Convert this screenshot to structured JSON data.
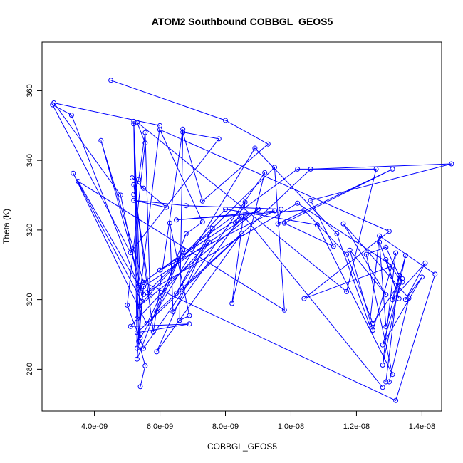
{
  "chart_data": {
    "type": "line",
    "title": "ATOM2 Southbound COBBGL_GEOS5",
    "xlabel": "COBBGL_GEOS5",
    "ylabel": "Theta (K)",
    "xlim": [
      2.4e-09,
      1.46e-08
    ],
    "ylim": [
      268,
      374
    ],
    "x_ticks": [
      4e-09,
      6e-09,
      8e-09,
      1e-08,
      1.2e-08,
      1.4e-08
    ],
    "x_tick_labels": [
      "4.0e-09",
      "6.0e-09",
      "8.0e-09",
      "1.0e-08",
      "1.2e-08",
      "1.4e-08"
    ],
    "y_ticks": [
      280,
      300,
      320,
      340,
      360
    ],
    "y_tick_labels": [
      "280",
      "300",
      "320",
      "340",
      "360"
    ],
    "grid": false,
    "legend": "none",
    "series": [
      {
        "color": "#0000ff",
        "style": "line+points",
        "points": [
          [
            4.5e-09,
            363.0
          ],
          [
            8e-09,
            351.5
          ],
          [
            9.3e-09,
            344.7
          ],
          [
            7.3e-09,
            328.3
          ],
          [
            6.7e-09,
            348.1
          ],
          [
            7.8e-09,
            346.2
          ],
          [
            5.1e-09,
            313.5
          ],
          [
            2.72e-09,
            356.0
          ],
          [
            3.3e-09,
            353.0
          ],
          [
            5.4e-09,
            302.5
          ],
          [
            5.2e-09,
            351.2
          ],
          [
            5.4e-09,
            289.0
          ],
          [
            8.9e-09,
            343.5
          ],
          [
            1.14e-08,
            318.9
          ],
          [
            1.24e-08,
            292.7
          ],
          [
            1.27e-08,
            318.3
          ],
          [
            1.44e-08,
            307.3
          ],
          [
            1.32e-08,
            271.0
          ],
          [
            5.5e-09,
            305.0
          ],
          [
            4.2e-09,
            345.7
          ],
          [
            5.5e-09,
            301.5
          ],
          [
            3.5e-09,
            334.0
          ],
          [
            9.8e-09,
            297.0
          ],
          [
            9.5e-09,
            338.0
          ],
          [
            5.6e-09,
            302.0
          ],
          [
            1.02e-08,
            327.7
          ],
          [
            1.31e-08,
            309.7
          ],
          [
            1.04e-08,
            300.3
          ],
          [
            1.3e-08,
            319.6
          ],
          [
            6e-09,
            348.8
          ],
          [
            7.3e-09,
            322.3
          ],
          [
            6.8e-09,
            318.9
          ],
          [
            5.3e-09,
            282.9
          ],
          [
            5.5e-09,
            303.7
          ],
          [
            8.6e-09,
            323.5
          ],
          [
            1.28e-08,
            274.8
          ]
        ]
      },
      {
        "color": "#0000ff",
        "style": "line+points",
        "points": [
          [
            5.3e-09,
            294.5
          ],
          [
            6e-09,
            350.0
          ],
          [
            2.76e-09,
            356.5
          ],
          [
            4.8e-09,
            330.0
          ],
          [
            5.35e-09,
            304.0
          ],
          [
            1.02e-08,
            337.5
          ],
          [
            1.26e-08,
            337.5
          ],
          [
            1.17e-08,
            302.3
          ],
          [
            5.3e-09,
            351.0
          ],
          [
            5.55e-09,
            345.0
          ],
          [
            5e-09,
            298.4
          ],
          [
            5.5e-09,
            286.0
          ],
          [
            9.2e-09,
            336.5
          ],
          [
            8.2e-09,
            298.9
          ],
          [
            8.6e-09,
            328.0
          ],
          [
            8.3e-09,
            322.0
          ],
          [
            9e-09,
            326.0
          ],
          [
            5.35e-09,
            298.0
          ],
          [
            8e-09,
            326.0
          ],
          [
            1.08e-08,
            321.5
          ],
          [
            1.31e-08,
            278.5
          ],
          [
            1.23e-08,
            313.0
          ],
          [
            1.29e-08,
            315.0
          ],
          [
            1.34e-08,
            305.0
          ],
          [
            1.29e-08,
            311.5
          ],
          [
            1.33e-08,
            300.3
          ],
          [
            1.27e-08,
            316.5
          ],
          [
            1.29e-08,
            292.2
          ],
          [
            1.35e-08,
            312.7
          ],
          [
            1.28e-08,
            281.2
          ],
          [
            1.32e-08,
            313.4
          ],
          [
            1.25e-08,
            291.2
          ],
          [
            1.18e-08,
            314.2
          ],
          [
            1.29e-08,
            301.4
          ],
          [
            1.16e-08,
            321.8
          ],
          [
            1.36e-08,
            300.4
          ],
          [
            1.3e-08,
            276.4
          ]
        ]
      },
      {
        "color": "#0000ff",
        "style": "line+points",
        "points": [
          [
            5.2e-09,
            330.2
          ],
          [
            5.35e-09,
            334.5
          ],
          [
            5.55e-09,
            348.0
          ],
          [
            5.7e-09,
            301.0
          ],
          [
            5.2e-09,
            333.0
          ],
          [
            5.8e-09,
            290.7
          ],
          [
            6.7e-09,
            349.0
          ],
          [
            6.6e-09,
            294.0
          ],
          [
            6.9e-09,
            295.4
          ],
          [
            6.3e-09,
            322.0
          ],
          [
            6.4e-09,
            296.5
          ],
          [
            8.5e-09,
            324.0
          ],
          [
            6e-09,
            308.5
          ],
          [
            9.5e-09,
            325.5
          ],
          [
            6.5e-09,
            322.9
          ],
          [
            1.04e-08,
            325.7
          ],
          [
            1.17e-08,
            313.0
          ],
          [
            1.25e-08,
            293.2
          ],
          [
            1.34e-08,
            306.0
          ],
          [
            1.28e-08,
            287.0
          ],
          [
            1.4e-08,
            306.5
          ],
          [
            1.35e-08,
            300.0
          ],
          [
            1.41e-08,
            310.5
          ],
          [
            1.31e-08,
            300.0
          ],
          [
            1.33e-08,
            307.0
          ],
          [
            1.29e-08,
            276.4
          ]
        ]
      },
      {
        "color": "#0000ff",
        "style": "line+points",
        "points": [
          [
            5.15e-09,
            335.0
          ],
          [
            5.5e-09,
            332.0
          ],
          [
            6.2e-09,
            326.5
          ],
          [
            5.2e-09,
            328.5
          ],
          [
            6.8e-09,
            327.0
          ],
          [
            9.7e-09,
            326.0
          ],
          [
            9.6e-09,
            321.8
          ],
          [
            1.31e-08,
            337.5
          ],
          [
            9.8e-09,
            322.0
          ],
          [
            1.13e-08,
            315.3
          ],
          [
            1.06e-08,
            328.5
          ],
          [
            1.49e-08,
            339.0
          ],
          [
            1.06e-08,
            337.5
          ],
          [
            5.3e-09,
            290.5
          ],
          [
            6.9e-09,
            293.0
          ],
          [
            5.1e-09,
            292.3
          ],
          [
            7.5e-09,
            316.5
          ],
          [
            6.5e-09,
            301.8
          ],
          [
            7.6e-09,
            320.5
          ],
          [
            5.9e-09,
            285.0
          ],
          [
            8.5e-09,
            319.0
          ],
          [
            5.9e-09,
            296.5
          ],
          [
            6.7e-09,
            314.3
          ],
          [
            5.6e-09,
            293.0
          ],
          [
            3.35e-09,
            336.3
          ],
          [
            5.45e-09,
            299.5
          ],
          [
            5.3e-09,
            286.0
          ],
          [
            5.2e-09,
            350.5
          ],
          [
            5.35e-09,
            288.0
          ],
          [
            5.55e-09,
            281.0
          ],
          [
            5.4e-09,
            275.0
          ]
        ]
      }
    ]
  }
}
